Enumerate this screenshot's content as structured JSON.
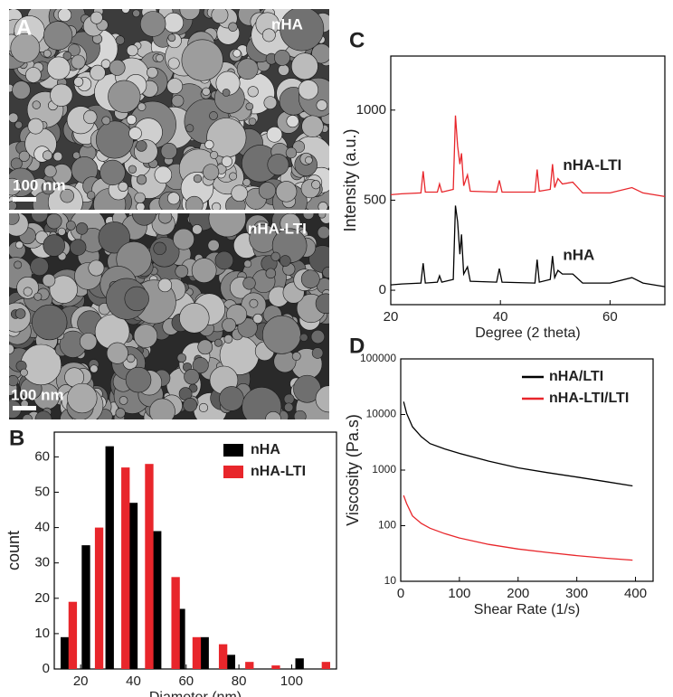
{
  "panel_labels": [
    "A",
    "B",
    "C",
    "D"
  ],
  "images": [
    {
      "label": "nHA",
      "scale": "100 nm"
    },
    {
      "label": "nHA-LTI",
      "scale": "100 nm"
    }
  ],
  "chart_data": [
    {
      "type": "bar",
      "xlabel": "Diameter (nm)",
      "ylabel": "count",
      "legend": "upper right",
      "xlim": [
        10,
        117
      ],
      "xticks": [
        20,
        40,
        60,
        80,
        100
      ],
      "ylim": [
        0,
        67
      ],
      "yticks": [
        0,
        10,
        20,
        30,
        40,
        50,
        60
      ],
      "series": [
        {
          "name": "nHA",
          "color": "#000000",
          "x": [
            14,
            22,
            31,
            40,
            49,
            58,
            67,
            77,
            103
          ],
          "values": [
            9,
            35,
            63,
            47,
            39,
            17,
            9,
            4,
            3
          ]
        },
        {
          "name": "nHA-LTI",
          "color": "#e8262b",
          "x": [
            17,
            27,
            37,
            46,
            56,
            64,
            74,
            84,
            94,
            113
          ],
          "values": [
            19,
            40,
            57,
            58,
            26,
            9,
            7,
            2,
            1,
            2
          ]
        }
      ]
    },
    {
      "type": "line",
      "xlabel": "Degree (2 theta)",
      "ylabel": "Intensity (a.u.)",
      "legend": "inline",
      "xlim": [
        20,
        70
      ],
      "xticks": [
        20,
        40,
        60
      ],
      "ylim": [
        -80,
        1300
      ],
      "yticks": [
        0,
        500,
        1000
      ],
      "x": [
        20,
        22,
        25.5,
        25.9,
        26.3,
        28.5,
        28.9,
        29.3,
        31.4,
        31.8,
        32.2,
        32.6,
        32.9,
        33.3,
        34,
        34.5,
        39.3,
        39.8,
        40.3,
        46.3,
        46.7,
        47.1,
        49.1,
        49.5,
        49.9,
        50.5,
        51.3,
        53.2,
        55,
        60,
        64,
        66,
        70
      ],
      "series": [
        {
          "name": "nHA-LTI",
          "color": "#e8262b",
          "values": [
            530,
            535,
            540,
            660,
            545,
            545,
            590,
            545,
            560,
            970,
            800,
            700,
            760,
            580,
            640,
            550,
            545,
            610,
            545,
            545,
            670,
            550,
            560,
            700,
            570,
            620,
            590,
            600,
            540,
            540,
            570,
            540,
            520
          ]
        },
        {
          "name": "nHA",
          "color": "#000000",
          "values": [
            30,
            35,
            40,
            150,
            40,
            45,
            80,
            45,
            60,
            470,
            380,
            200,
            310,
            90,
            130,
            50,
            45,
            120,
            45,
            40,
            170,
            45,
            60,
            190,
            70,
            110,
            90,
            90,
            40,
            40,
            70,
            40,
            20
          ]
        }
      ]
    },
    {
      "type": "line",
      "xlabel": "Shear Rate (1/s)",
      "ylabel": "Viscosity (Pa.s)",
      "legend": "upper right",
      "yscale": "log",
      "xlim": [
        0,
        430
      ],
      "xticks": [
        0,
        100,
        200,
        300,
        400
      ],
      "ylim": [
        10,
        100000
      ],
      "yticks": [
        10,
        100,
        1000,
        10000,
        100000
      ],
      "x": [
        5,
        10,
        20,
        35,
        50,
        75,
        100,
        150,
        200,
        250,
        300,
        350,
        395
      ],
      "series": [
        {
          "name": "nHA/LTI",
          "color": "#000000",
          "values": [
            17000,
            10500,
            6000,
            4000,
            3000,
            2400,
            2000,
            1450,
            1100,
            900,
            750,
            620,
            520
          ]
        },
        {
          "name": "nHA-LTI/LTI",
          "color": "#e8262b",
          "values": [
            350,
            250,
            150,
            110,
            90,
            72,
            60,
            46,
            38,
            33,
            29,
            26,
            24
          ]
        }
      ]
    }
  ]
}
